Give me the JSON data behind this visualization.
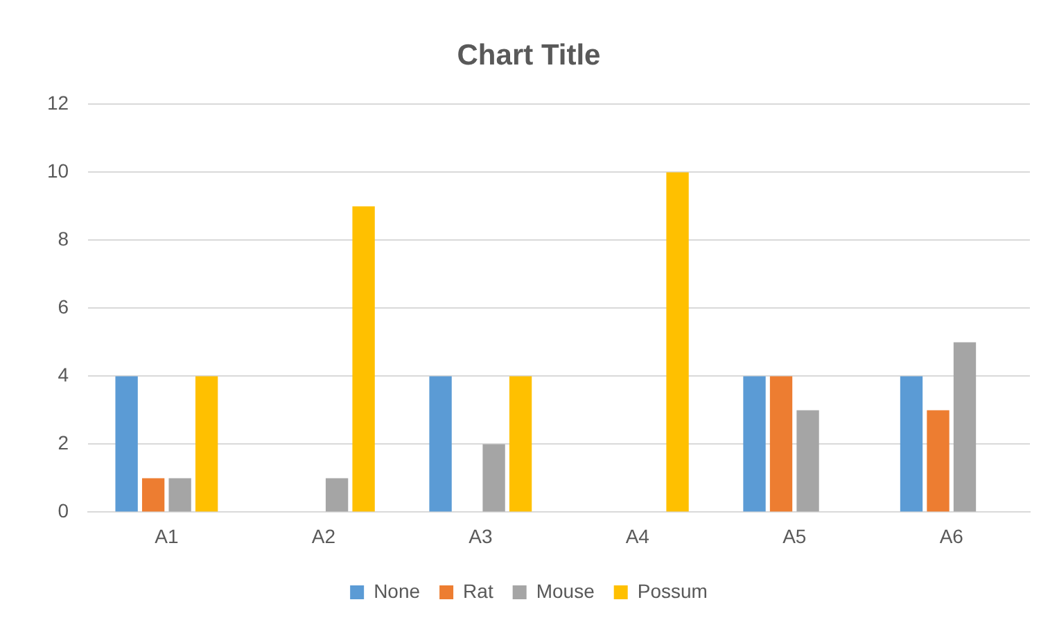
{
  "chart_data": {
    "type": "bar",
    "title": "Chart Title",
    "categories": [
      "A1",
      "A2",
      "A3",
      "A4",
      "A5",
      "A6"
    ],
    "series": [
      {
        "name": "None",
        "color": "#5b9bd5",
        "values": [
          4,
          0,
          4,
          0,
          4,
          4
        ]
      },
      {
        "name": "Rat",
        "color": "#ed7d31",
        "values": [
          1,
          0,
          0,
          0,
          4,
          3
        ]
      },
      {
        "name": "Mouse",
        "color": "#a5a5a5",
        "values": [
          1,
          1,
          2,
          0,
          3,
          5
        ]
      },
      {
        "name": "Possum",
        "color": "#ffc000",
        "values": [
          4,
          9,
          4,
          10,
          0,
          0
        ]
      }
    ],
    "ylim": [
      0,
      12
    ],
    "yticks": [
      0,
      2,
      4,
      6,
      8,
      10,
      12
    ],
    "grid": "y",
    "legend": "bottom"
  }
}
